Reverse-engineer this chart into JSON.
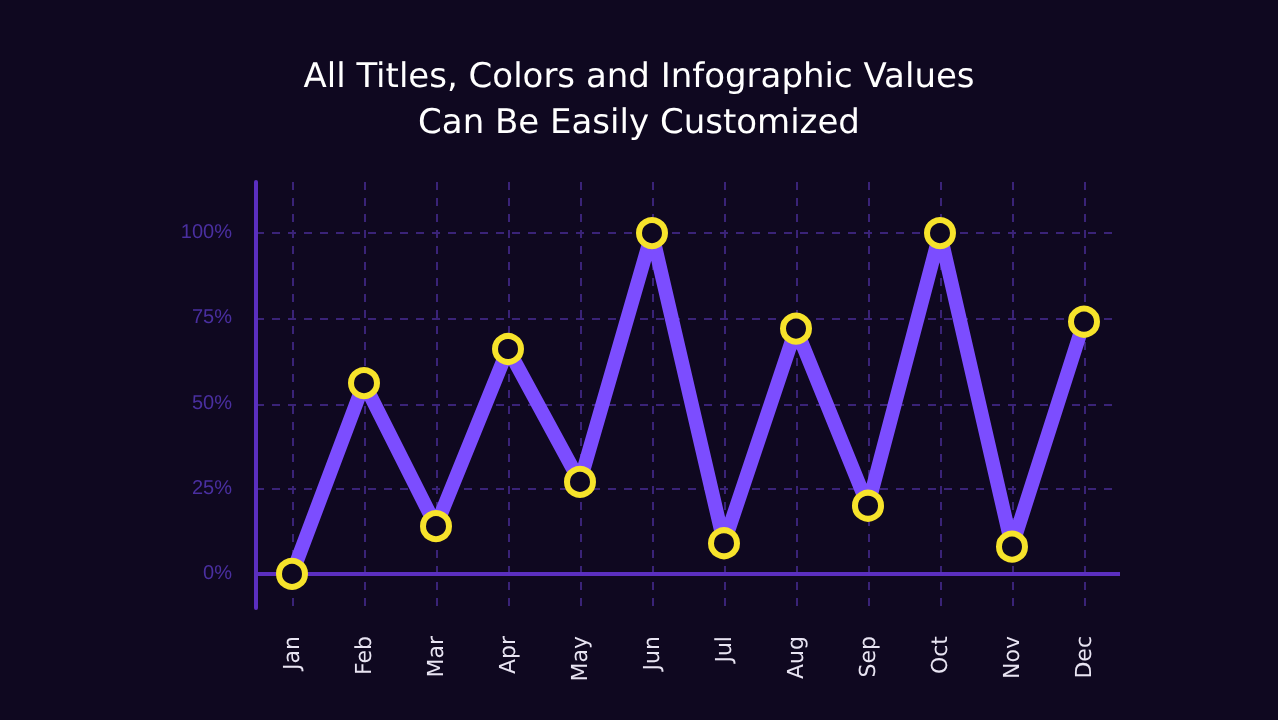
{
  "chart_data": {
    "type": "line",
    "title": "All Titles, Colors and Infographic Values\nCan Be Easily Customized",
    "categories": [
      "Jan",
      "Feb",
      "Mar",
      "Apr",
      "May",
      "Jun",
      "Jul",
      "Aug",
      "Sep",
      "Oct",
      "Nov",
      "Dec"
    ],
    "series": [
      {
        "color": "#7c4dff",
        "values": [
          0,
          56,
          14,
          66,
          27,
          100,
          9,
          72,
          20,
          100,
          8,
          74
        ]
      }
    ],
    "ylim": [
      -10,
      115
    ],
    "yticks": [
      {
        "value": 0,
        "label": "0%"
      },
      {
        "value": 25,
        "label": "25%"
      },
      {
        "value": 50,
        "label": "50%"
      },
      {
        "value": 75,
        "label": "75%"
      },
      {
        "value": 100,
        "label": "100%"
      }
    ],
    "ref_lines": [
      {
        "axis": "y",
        "value": 0,
        "color": "#5b2fc0",
        "line_style": "solid"
      }
    ],
    "grid": true,
    "marker": "circle",
    "line_style": "solid"
  }
}
